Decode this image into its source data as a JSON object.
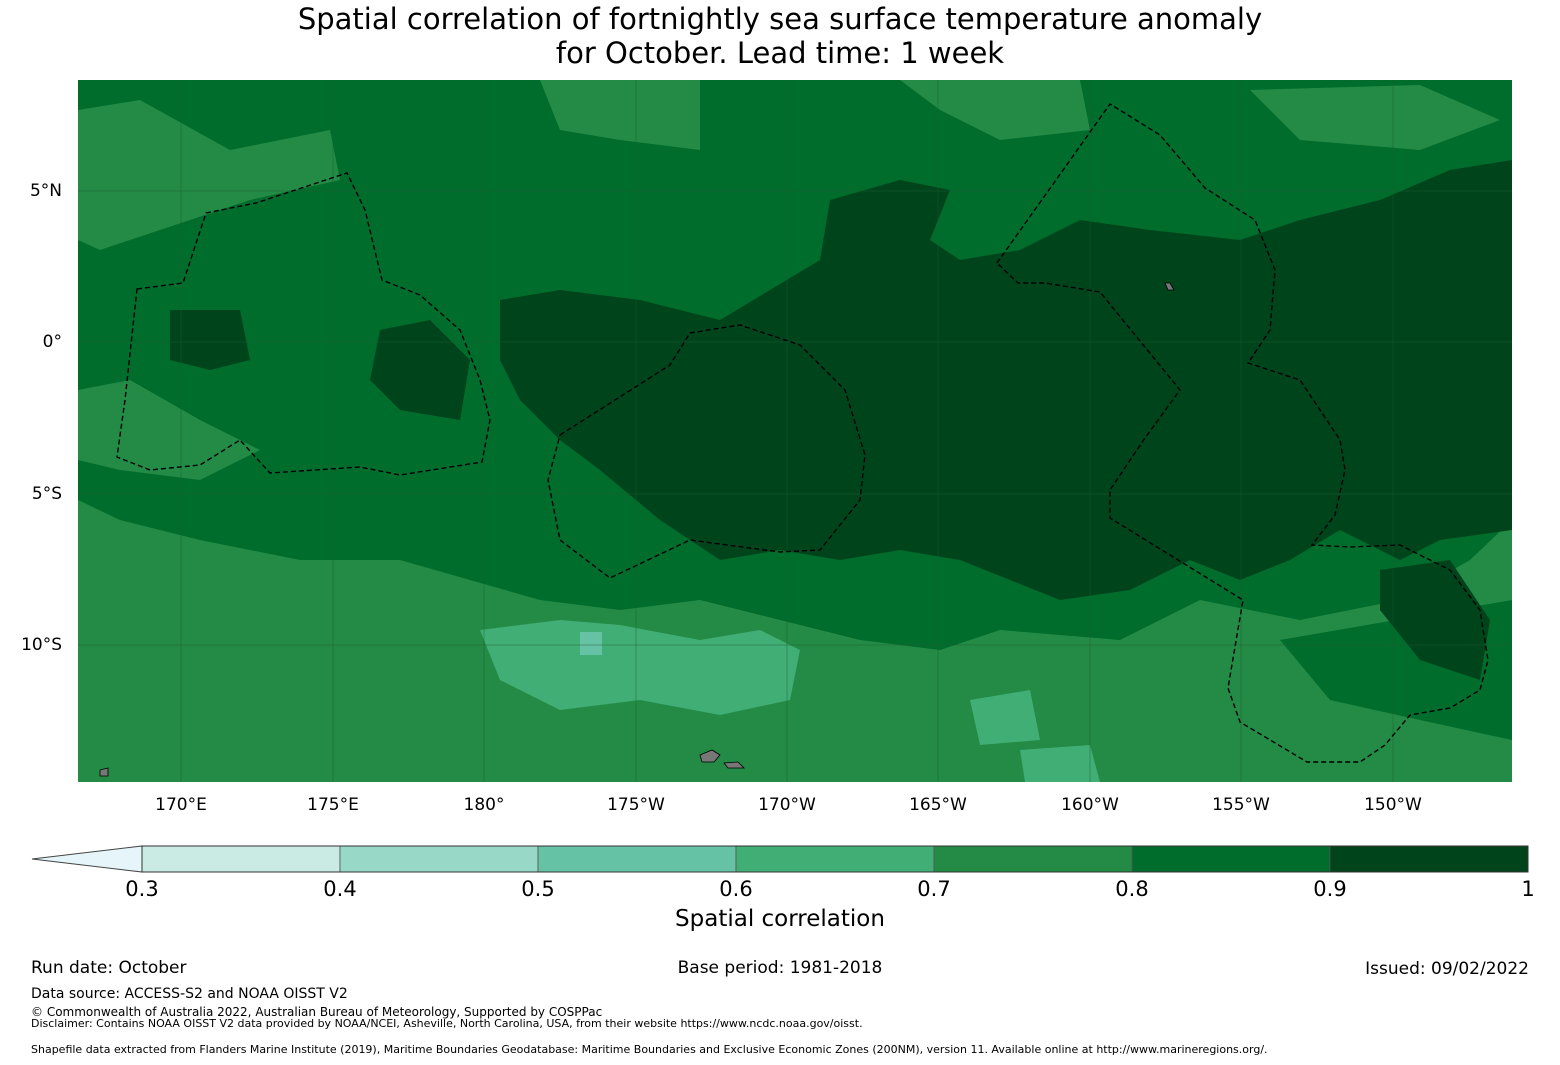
{
  "title": {
    "line1": "Spatial correlation of fortnightly sea surface temperature anomaly",
    "line2": "for October. Lead time: 1 week"
  },
  "map": {
    "type": "heatmap",
    "longitude_ticks": [
      "170°E",
      "175°E",
      "180°",
      "175°W",
      "170°W",
      "165°W",
      "160°W",
      "155°W",
      "150°W"
    ],
    "latitude_ticks": [
      "5°N",
      "0°",
      "5°S",
      "10°S"
    ],
    "lon_range": [
      "166.6°E",
      "146.0°W"
    ],
    "lat_range": [
      "14.5°S",
      "8.6°N"
    ],
    "dominant_correlation": "0.8-1.0 across equatorial band; 0.6-0.8 in south"
  },
  "colorbar": {
    "label": "Spatial correlation",
    "ticks": [
      "0.3",
      "0.4",
      "0.5",
      "0.6",
      "0.7",
      "0.8",
      "0.9",
      "1"
    ],
    "colors": [
      "#c9ebe3",
      "#97d8c6",
      "#65c2a4",
      "#41ae76",
      "#238b45",
      "#006d2c",
      "#00441b"
    ],
    "extend_color": "#e5f5f9"
  },
  "chart_data": {
    "type": "heatmap",
    "title": "Spatial correlation of fortnightly sea surface temperature anomaly for October. Lead time: 1 week",
    "colorbar_label": "Spatial correlation",
    "levels": [
      0.3,
      0.4,
      0.5,
      0.6,
      0.7,
      0.8,
      0.9,
      1.0
    ],
    "xlabel": "",
    "ylabel": ""
  },
  "footer": {
    "run_date": "Run date: October",
    "base_period": "Base period: 1981-2018",
    "issued": "Issued: 09/02/2022",
    "data_source": "Data source: ACCESS-S2 and NOAA OISST V2",
    "copyright": "© Commonwealth of Australia 2022, Australian Bureau of Meteorology, Supported by COSPPac",
    "disclaimer": "Disclaimer: Contains NOAA OISST V2 data provided by NOAA/NCEI, Asheville, North Carolina, USA, from their website https://www.ncdc.noaa.gov/oisst.",
    "shapefile": "Shapefile data extracted from Flanders Marine Institute (2019), Maritime Boundaries Geodatabase: Maritime Boundaries and Exclusive Economic Zones (200NM), version 11. Available online at http://www.marineregions.org/."
  }
}
